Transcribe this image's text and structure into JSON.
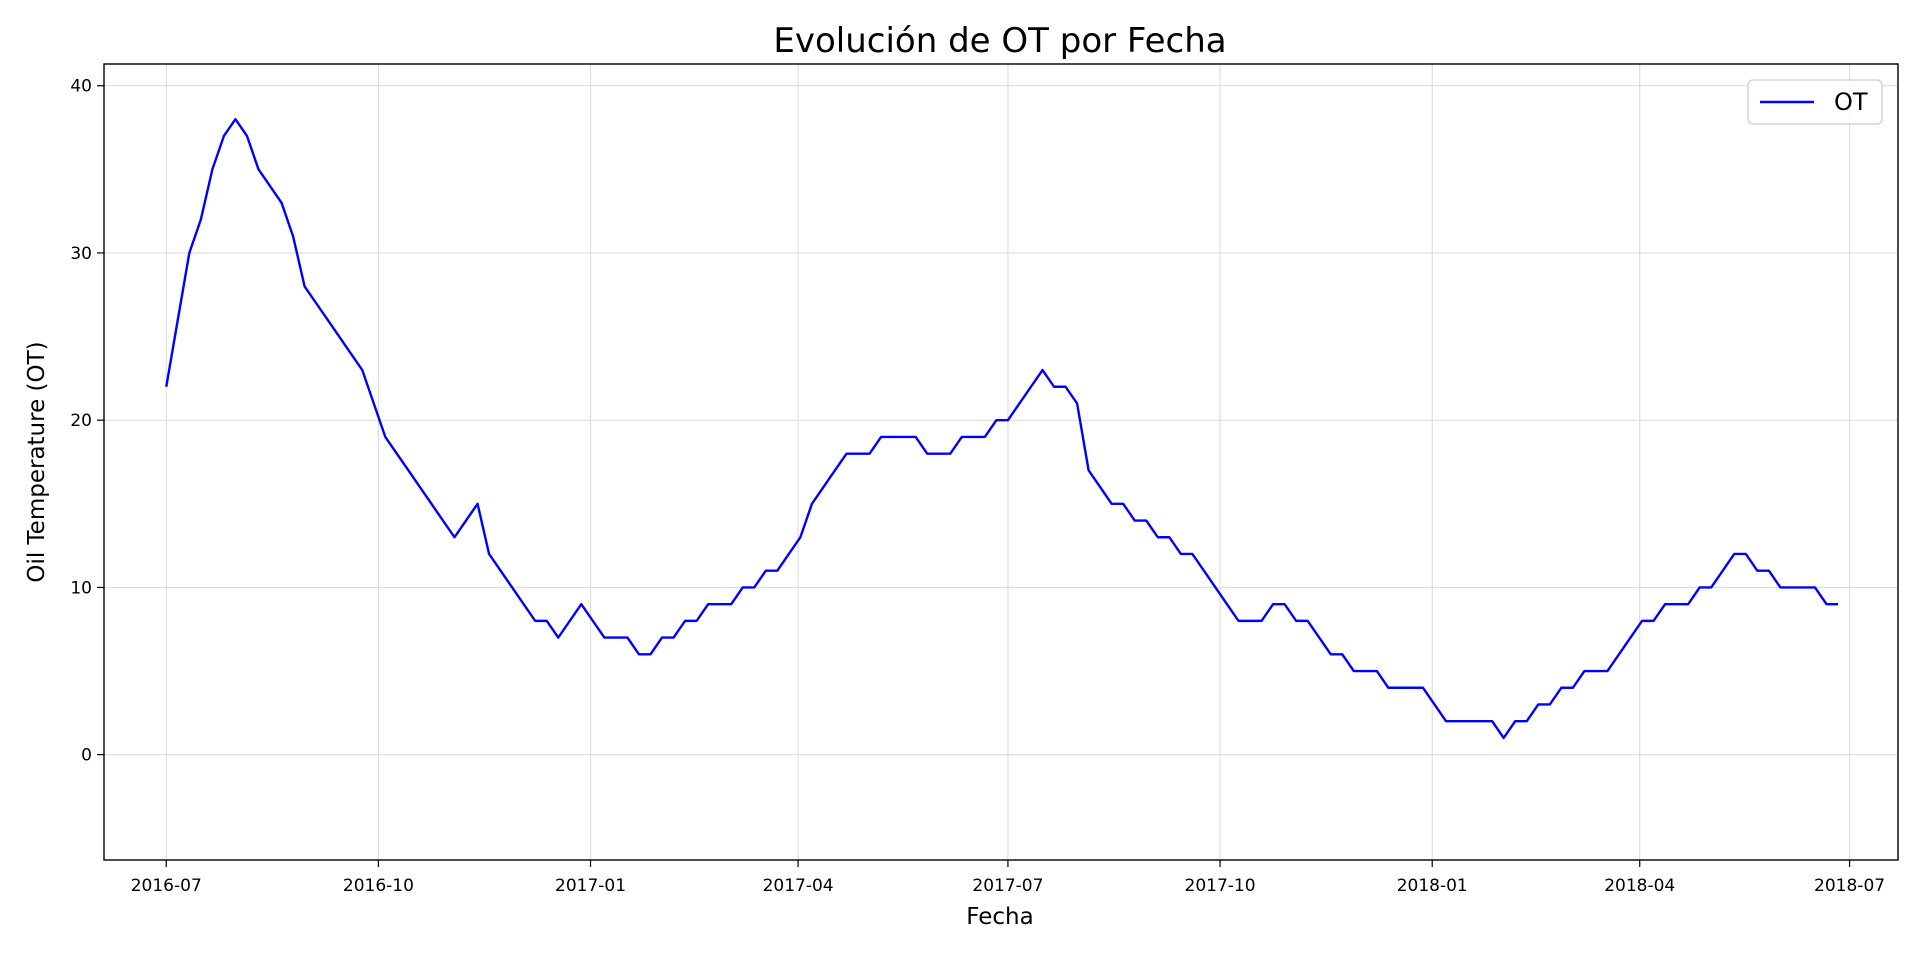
{
  "chart_data": {
    "type": "line",
    "title": "Evolución de OT por Fecha",
    "xlabel": "Fecha",
    "ylabel": "Oil Temperature (OT)",
    "x_axis_type": "date",
    "xlim": [
      "2016-06-04",
      "2018-07-22"
    ],
    "ylim": [
      -6.3,
      41.3
    ],
    "x_ticks": [
      "2016-07",
      "2016-10",
      "2017-01",
      "2017-04",
      "2017-07",
      "2017-10",
      "2018-01",
      "2018-04",
      "2018-07"
    ],
    "y_ticks": [
      0,
      10,
      20,
      30,
      40
    ],
    "grid": true,
    "legend": {
      "position": "top-right",
      "entries": [
        "OT"
      ]
    },
    "series": [
      {
        "name": "OT",
        "color": "#0000ff",
        "x": [
          "2016-07-01",
          "2016-07-06",
          "2016-07-11",
          "2016-07-16",
          "2016-07-21",
          "2016-07-26",
          "2016-07-31",
          "2016-08-05",
          "2016-08-10",
          "2016-08-15",
          "2016-08-20",
          "2016-08-25",
          "2016-08-30",
          "2016-09-04",
          "2016-09-09",
          "2016-09-14",
          "2016-09-19",
          "2016-09-24",
          "2016-09-29",
          "2016-10-04",
          "2016-10-09",
          "2016-10-14",
          "2016-10-19",
          "2016-10-24",
          "2016-10-29",
          "2016-11-03",
          "2016-11-08",
          "2016-11-13",
          "2016-11-18",
          "2016-11-23",
          "2016-11-28",
          "2016-12-03",
          "2016-12-08",
          "2016-12-13",
          "2016-12-18",
          "2016-12-23",
          "2016-12-28",
          "2017-01-02",
          "2017-01-07",
          "2017-01-12",
          "2017-01-17",
          "2017-01-22",
          "2017-01-27",
          "2017-02-01",
          "2017-02-06",
          "2017-02-11",
          "2017-02-16",
          "2017-02-21",
          "2017-02-26",
          "2017-03-03",
          "2017-03-08",
          "2017-03-13",
          "2017-03-18",
          "2017-03-23",
          "2017-03-28",
          "2017-04-02",
          "2017-04-07",
          "2017-04-12",
          "2017-04-17",
          "2017-04-22",
          "2017-04-27",
          "2017-05-02",
          "2017-05-07",
          "2017-05-12",
          "2017-05-17",
          "2017-05-22",
          "2017-05-27",
          "2017-06-01",
          "2017-06-06",
          "2017-06-11",
          "2017-06-16",
          "2017-06-21",
          "2017-06-26",
          "2017-07-01",
          "2017-07-06",
          "2017-07-11",
          "2017-07-16",
          "2017-07-21",
          "2017-07-26",
          "2017-07-31",
          "2017-08-05",
          "2017-08-10",
          "2017-08-15",
          "2017-08-20",
          "2017-08-25",
          "2017-08-30",
          "2017-09-04",
          "2017-09-09",
          "2017-09-14",
          "2017-09-19",
          "2017-09-24",
          "2017-09-29",
          "2017-10-04",
          "2017-10-09",
          "2017-10-14",
          "2017-10-19",
          "2017-10-24",
          "2017-10-29",
          "2017-11-03",
          "2017-11-08",
          "2017-11-13",
          "2017-11-18",
          "2017-11-23",
          "2017-11-28",
          "2017-12-03",
          "2017-12-08",
          "2017-12-13",
          "2017-12-18",
          "2017-12-23",
          "2017-12-28",
          "2018-01-02",
          "2018-01-07",
          "2018-01-12",
          "2018-01-17",
          "2018-01-22",
          "2018-01-27",
          "2018-02-01",
          "2018-02-06",
          "2018-02-11",
          "2018-02-16",
          "2018-02-21",
          "2018-02-26",
          "2018-03-03",
          "2018-03-08",
          "2018-03-13",
          "2018-03-18",
          "2018-03-23",
          "2018-03-28",
          "2018-04-02",
          "2018-04-07",
          "2018-04-12",
          "2018-04-17",
          "2018-04-22",
          "2018-04-27",
          "2018-05-02",
          "2018-05-07",
          "2018-05-12",
          "2018-05-17",
          "2018-05-22",
          "2018-05-27",
          "2018-06-01",
          "2018-06-06",
          "2018-06-11",
          "2018-06-16",
          "2018-06-21",
          "2018-06-26"
        ],
        "y": [
          22,
          26,
          30,
          32,
          35,
          37,
          38,
          37,
          35,
          34,
          33,
          31,
          28,
          27,
          26,
          25,
          24,
          23,
          21,
          19,
          18,
          17,
          16,
          15,
          14,
          13,
          14,
          15,
          12,
          11,
          10,
          9,
          8,
          8,
          7,
          8,
          9,
          8,
          7,
          7,
          7,
          6,
          6,
          7,
          7,
          8,
          8,
          9,
          9,
          9,
          10,
          10,
          11,
          11,
          12,
          13,
          15,
          16,
          17,
          18,
          18,
          18,
          19,
          19,
          19,
          19,
          18,
          18,
          18,
          19,
          19,
          19,
          20,
          20,
          21,
          22,
          23,
          22,
          22,
          21,
          17,
          16,
          15,
          15,
          14,
          14,
          13,
          13,
          12,
          12,
          11,
          10,
          9,
          8,
          8,
          8,
          9,
          9,
          8,
          8,
          7,
          6,
          6,
          5,
          5,
          5,
          4,
          4,
          4,
          4,
          3,
          2,
          2,
          2,
          2,
          2,
          1,
          2,
          2,
          3,
          3,
          4,
          4,
          5,
          5,
          5,
          6,
          7,
          8,
          8,
          9,
          9,
          9,
          10,
          10,
          11,
          12,
          12,
          11,
          11,
          10,
          10,
          10,
          10,
          9,
          9
        ]
      }
    ]
  }
}
